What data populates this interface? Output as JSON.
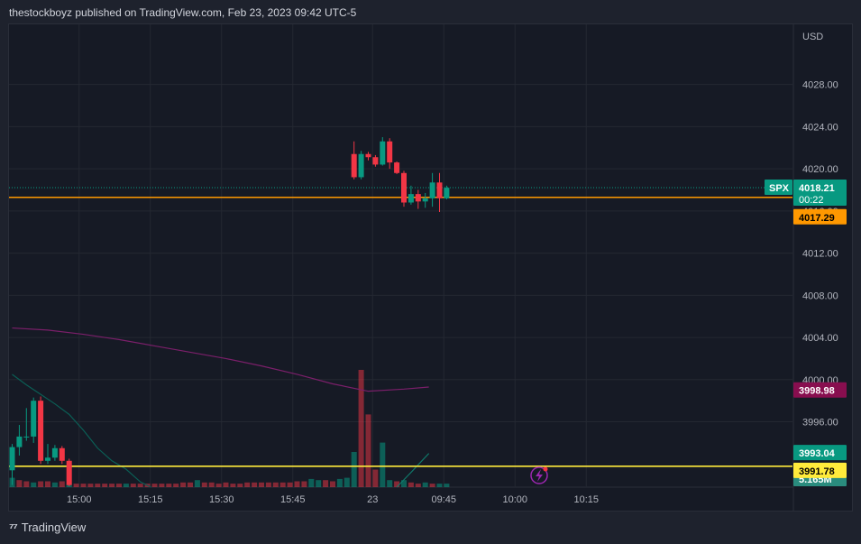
{
  "header": {
    "text": "thestockboyz published on TradingView.com, Feb 23, 2023 09:42 UTC-5"
  },
  "footer": {
    "brand": "TradingView"
  },
  "chart_data": {
    "type": "candlestick",
    "symbol": "SPX",
    "currency": "USD",
    "ylim": [
      3989.8,
      4033.7
    ],
    "y_ticks": [
      "4028.00",
      "4024.00",
      "4020.00",
      "4016.00",
      "4012.00",
      "4008.00",
      "4004.00",
      "4000.00",
      "3996.00"
    ],
    "y_tick_values": [
      4028,
      4024,
      4020,
      4016,
      4012,
      4008,
      4004,
      4000,
      3996
    ],
    "x_ticks": [
      {
        "label": "15:00",
        "slot": 9.4
      },
      {
        "label": "15:15",
        "slot": 19.4
      },
      {
        "label": "15:30",
        "slot": 29.4
      },
      {
        "label": "15:45",
        "slot": 39.4
      },
      {
        "label": "23",
        "slot": 50.6
      },
      {
        "label": "09:45",
        "slot": 60.6
      },
      {
        "label": "10:00",
        "slot": 70.6
      },
      {
        "label": "10:15",
        "slot": 80.6
      }
    ],
    "last_price": {
      "label": "SPX",
      "value": "4018.21",
      "countdown": "00:22",
      "price": 4018.21,
      "color": "#089981"
    },
    "horizontal_lines": [
      {
        "price": 4017.29,
        "label": "4017.29",
        "color": "#ff9800"
      },
      {
        "price": 3991.78,
        "label": "3991.78",
        "color": "#ffeb3b"
      }
    ],
    "indicator_labels": [
      {
        "price": 3998.98,
        "label": "3998.98",
        "color": "#880e4f"
      },
      {
        "price": 3993.04,
        "label": "3993.04",
        "color": "#089981"
      },
      {
        "price": 3989.9,
        "label": "5.165M",
        "color": "#2a8c7e"
      }
    ],
    "ma_purple": [
      [
        0,
        4004.9
      ],
      [
        5,
        4004.7
      ],
      [
        10,
        4004.3
      ],
      [
        15,
        4003.8
      ],
      [
        20,
        4003.2
      ],
      [
        25,
        4002.6
      ],
      [
        30,
        4002.0
      ],
      [
        35,
        4001.3
      ],
      [
        40,
        4000.5
      ],
      [
        45,
        3999.6
      ],
      [
        50,
        3998.9
      ],
      [
        55,
        3999.1
      ],
      [
        58.5,
        3999.3
      ]
    ],
    "ma_green": [
      [
        0,
        4000.5
      ],
      [
        2,
        3999.5
      ],
      [
        4,
        3998.6
      ],
      [
        6,
        3997.7
      ],
      [
        8,
        3996.7
      ],
      [
        10,
        3995.2
      ],
      [
        12,
        3993.5
      ],
      [
        14,
        3992.3
      ],
      [
        16,
        3991.5
      ],
      [
        18,
        3990.3
      ],
      [
        19.5,
        3989.8
      ]
    ],
    "ma_green_tail": [
      [
        54,
        3989.8
      ],
      [
        56,
        3991.2
      ],
      [
        58.5,
        3993.0
      ]
    ],
    "candles": [
      [
        0,
        3991.4,
        3993.6,
        3993.9,
        3990.0
      ],
      [
        1,
        3993.6,
        3994.6,
        3995.7,
        3992.8
      ],
      [
        2,
        3994.6,
        3994.6,
        3997.3,
        3994.2
      ],
      [
        3,
        3994.6,
        3998.0,
        3998.3,
        3994.0
      ],
      [
        4,
        3998.0,
        3992.3,
        3998.4,
        3992.0
      ],
      [
        5,
        3992.3,
        3992.6,
        3993.9,
        3992.0
      ],
      [
        6,
        3992.6,
        3993.5,
        3993.8,
        3992.3
      ],
      [
        7,
        3993.5,
        3992.3,
        3993.7,
        3992.0
      ],
      [
        8,
        3992.3,
        3990.0,
        3992.5,
        3989.9
      ],
      [
        48,
        4021.4,
        4019.2,
        4022.6,
        4019.0
      ],
      [
        49,
        4019.2,
        4021.4,
        4021.7,
        4019.0
      ],
      [
        50,
        4021.4,
        4021.1,
        4021.6,
        4020.8
      ],
      [
        51,
        4021.1,
        4020.4,
        4021.3,
        4020.2
      ],
      [
        52,
        4020.4,
        4022.6,
        4023.0,
        4020.3
      ],
      [
        53,
        4022.6,
        4020.6,
        4022.9,
        4020.0
      ],
      [
        54,
        4020.6,
        4019.6,
        4020.7,
        4019.5
      ],
      [
        55,
        4019.6,
        4016.8,
        4019.8,
        4016.4
      ],
      [
        56,
        4016.8,
        4017.6,
        4018.4,
        4016.6
      ],
      [
        57,
        4017.6,
        4016.9,
        4018.0,
        4016.2
      ],
      [
        58,
        4016.9,
        4017.2,
        4017.7,
        4016.3
      ],
      [
        59,
        4017.2,
        4018.7,
        4019.6,
        4016.4
      ],
      [
        60,
        4018.7,
        4017.2,
        4019.6,
        4015.9
      ],
      [
        61,
        4017.2,
        4018.2,
        4018.4,
        4017.1
      ]
    ],
    "volume": [
      [
        0,
        8,
        "u"
      ],
      [
        1,
        6,
        "d"
      ],
      [
        2,
        5,
        "d"
      ],
      [
        3,
        4,
        "u"
      ],
      [
        4,
        5,
        "d"
      ],
      [
        5,
        5,
        "d"
      ],
      [
        6,
        4,
        "u"
      ],
      [
        7,
        5,
        "d"
      ],
      [
        8,
        3,
        "u"
      ],
      [
        9,
        3,
        "d"
      ],
      [
        10,
        3,
        "d"
      ],
      [
        11,
        3,
        "d"
      ],
      [
        12,
        3,
        "d"
      ],
      [
        13,
        3,
        "d"
      ],
      [
        14,
        3,
        "d"
      ],
      [
        15,
        3,
        "d"
      ],
      [
        16,
        3,
        "u"
      ],
      [
        17,
        3,
        "d"
      ],
      [
        18,
        3,
        "d"
      ],
      [
        19,
        3,
        "d"
      ],
      [
        20,
        3,
        "d"
      ],
      [
        21,
        3,
        "d"
      ],
      [
        22,
        3,
        "d"
      ],
      [
        23,
        3,
        "d"
      ],
      [
        24,
        4,
        "d"
      ],
      [
        25,
        4,
        "d"
      ],
      [
        26,
        6,
        "u"
      ],
      [
        27,
        4,
        "d"
      ],
      [
        28,
        4,
        "d"
      ],
      [
        29,
        3,
        "d"
      ],
      [
        30,
        4,
        "d"
      ],
      [
        31,
        3,
        "d"
      ],
      [
        32,
        3,
        "d"
      ],
      [
        33,
        4,
        "d"
      ],
      [
        34,
        4,
        "d"
      ],
      [
        35,
        4,
        "d"
      ],
      [
        36,
        4,
        "d"
      ],
      [
        37,
        4,
        "d"
      ],
      [
        38,
        4,
        "d"
      ],
      [
        39,
        4,
        "d"
      ],
      [
        40,
        5,
        "d"
      ],
      [
        41,
        5,
        "d"
      ],
      [
        42,
        7,
        "u"
      ],
      [
        43,
        6,
        "u"
      ],
      [
        44,
        6,
        "d"
      ],
      [
        45,
        5,
        "d"
      ],
      [
        46,
        7,
        "u"
      ],
      [
        47,
        8,
        "u"
      ],
      [
        48,
        30,
        "u"
      ],
      [
        49,
        100,
        "d"
      ],
      [
        50,
        62,
        "d"
      ],
      [
        51,
        15,
        "d"
      ],
      [
        52,
        38,
        "u"
      ],
      [
        53,
        6,
        "u"
      ],
      [
        54,
        5,
        "d"
      ],
      [
        55,
        6,
        "u"
      ],
      [
        56,
        4,
        "d"
      ],
      [
        57,
        3,
        "d"
      ],
      [
        58,
        4,
        "u"
      ],
      [
        59,
        3,
        "d"
      ],
      [
        60,
        3,
        "u"
      ],
      [
        61,
        3,
        "u"
      ]
    ]
  }
}
